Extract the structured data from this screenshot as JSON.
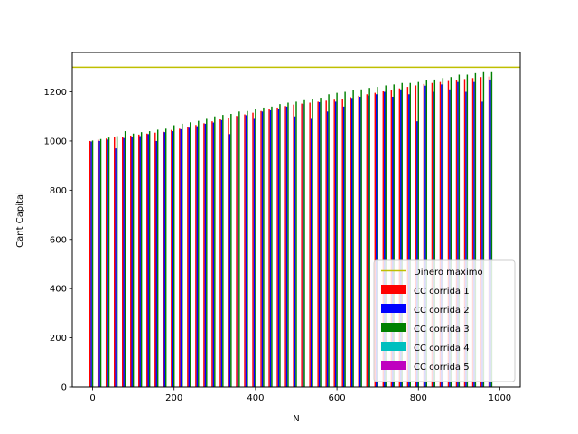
{
  "chart_data": {
    "type": "bar",
    "title": "",
    "xlabel": "N",
    "ylabel": "Cant Capital",
    "xlim": [
      -50,
      1050
    ],
    "ylim": [
      0,
      1360
    ],
    "xticks": [
      0,
      200,
      400,
      600,
      800,
      1000
    ],
    "yticks": [
      0,
      200,
      400,
      600,
      800,
      1000,
      1200
    ],
    "grid": false,
    "legend_position": "lower-right",
    "bar_group_step": 20,
    "reference_line": {
      "name": "Dinero maximo",
      "value": 1300,
      "color": "#bfbf00"
    },
    "x": [
      0,
      20,
      40,
      60,
      80,
      100,
      120,
      140,
      160,
      180,
      200,
      220,
      240,
      260,
      280,
      300,
      320,
      340,
      360,
      380,
      400,
      420,
      440,
      460,
      480,
      500,
      520,
      540,
      560,
      580,
      600,
      620,
      640,
      660,
      680,
      700,
      720,
      740,
      760,
      780,
      800,
      820,
      840,
      860,
      880,
      900,
      920,
      940,
      960,
      980
    ],
    "series": [
      {
        "name": "CC corrida 1",
        "color": "#ff0000",
        "values": [
          1000,
          1005,
          1010,
          1015,
          1018,
          1022,
          1026,
          1030,
          1034,
          1038,
          1045,
          1050,
          1058,
          1065,
          1072,
          1080,
          1088,
          1095,
          1102,
          1108,
          1115,
          1122,
          1130,
          1136,
          1142,
          1148,
          1152,
          1156,
          1160,
          1164,
          1168,
          1172,
          1178,
          1184,
          1190,
          1196,
          1202,
          1208,
          1214,
          1220,
          1226,
          1232,
          1236,
          1240,
          1244,
          1248,
          1252,
          1256,
          1260,
          1262
        ]
      },
      {
        "name": "CC corrida 2",
        "color": "#0000ff",
        "values": [
          998,
          1000,
          1006,
          970,
          1012,
          1018,
          1020,
          1028,
          1000,
          1036,
          1040,
          1048,
          1054,
          1060,
          1070,
          1075,
          1085,
          1028,
          1100,
          1105,
          1090,
          1120,
          1125,
          1130,
          1140,
          1100,
          1150,
          1090,
          1158,
          1120,
          1160,
          1140,
          1175,
          1180,
          1185,
          1190,
          1200,
          1180,
          1210,
          1190,
          1080,
          1225,
          1200,
          1230,
          1210,
          1240,
          1200,
          1240,
          1160,
          1250
        ]
      },
      {
        "name": "CC corrida 3",
        "color": "#008000",
        "values": [
          1002,
          1008,
          1014,
          1020,
          1040,
          1030,
          1036,
          1040,
          1046,
          1050,
          1064,
          1070,
          1076,
          1082,
          1090,
          1100,
          1106,
          1110,
          1120,
          1122,
          1130,
          1136,
          1140,
          1150,
          1156,
          1160,
          1166,
          1170,
          1176,
          1190,
          1196,
          1200,
          1206,
          1210,
          1216,
          1220,
          1226,
          1230,
          1236,
          1236,
          1240,
          1246,
          1250,
          1256,
          1260,
          1270,
          1270,
          1276,
          1280,
          1280
        ]
      },
      {
        "name": "CC corrida 4",
        "color": "#00bfbf",
        "values": [
          0,
          0,
          0,
          0,
          0,
          0,
          0,
          0,
          0,
          0,
          0,
          0,
          0,
          0,
          0,
          0,
          0,
          0,
          0,
          0,
          0,
          0,
          0,
          0,
          0,
          0,
          0,
          0,
          0,
          0,
          0,
          0,
          0,
          0,
          0,
          0,
          0,
          0,
          0,
          0,
          0,
          0,
          0,
          0,
          0,
          0,
          0,
          0,
          0,
          0
        ]
      },
      {
        "name": "CC corrida 5",
        "color": "#bf00bf",
        "values": [
          0,
          0,
          0,
          0,
          0,
          0,
          0,
          0,
          0,
          0,
          0,
          0,
          0,
          0,
          0,
          0,
          0,
          0,
          0,
          0,
          0,
          0,
          0,
          0,
          0,
          0,
          0,
          0,
          0,
          0,
          0,
          0,
          0,
          0,
          0,
          0,
          0,
          0,
          0,
          0,
          0,
          0,
          0,
          0,
          0,
          0,
          0,
          0,
          0,
          0
        ]
      }
    ]
  }
}
